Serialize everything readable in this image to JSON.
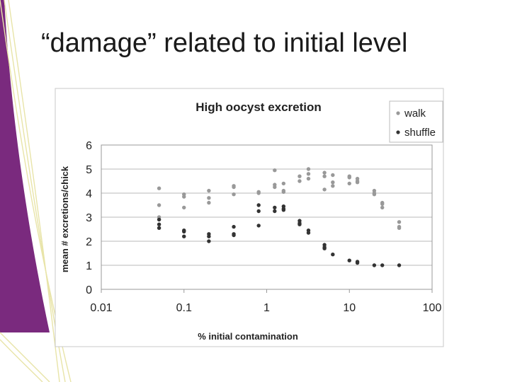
{
  "slide": {
    "title": "“damage” related to initial level",
    "accent_color": "#7a2a7e",
    "stripe_color": "#e8e4a8"
  },
  "chart_data": {
    "type": "scatter",
    "title": "High oocyst excretion",
    "xlabel": "% initial contamination",
    "ylabel": "mean # excretions/chick",
    "x_scale": "log",
    "xlim": [
      0.01,
      100
    ],
    "ylim": [
      0,
      6
    ],
    "x_ticks": [
      0.01,
      0.1,
      1,
      10,
      100
    ],
    "x_tick_labels": [
      "0.01",
      "0.1",
      "1",
      "10",
      "100"
    ],
    "y_ticks": [
      0,
      1,
      2,
      3,
      4,
      5,
      6
    ],
    "y_tick_labels": [
      "0",
      "1",
      "2",
      "3",
      "4",
      "5",
      "6"
    ],
    "grid": "horizontal",
    "legend_position": "top-right",
    "series": [
      {
        "name": "walk",
        "color": "#999999",
        "points": [
          [
            0.05,
            4.2
          ],
          [
            0.05,
            3.5
          ],
          [
            0.05,
            3.0
          ],
          [
            0.05,
            2.9
          ],
          [
            0.1,
            3.95
          ],
          [
            0.1,
            3.85
          ],
          [
            0.1,
            3.4
          ],
          [
            0.2,
            4.1
          ],
          [
            0.2,
            3.8
          ],
          [
            0.2,
            3.6
          ],
          [
            0.4,
            4.3
          ],
          [
            0.4,
            4.25
          ],
          [
            0.4,
            3.95
          ],
          [
            0.8,
            4.05
          ],
          [
            0.8,
            4.0
          ],
          [
            1.25,
            4.95
          ],
          [
            1.25,
            4.35
          ],
          [
            1.25,
            4.25
          ],
          [
            1.6,
            4.4
          ],
          [
            1.6,
            4.1
          ],
          [
            1.6,
            4.05
          ],
          [
            2.5,
            4.7
          ],
          [
            2.5,
            4.5
          ],
          [
            3.2,
            5.0
          ],
          [
            3.2,
            4.8
          ],
          [
            3.2,
            4.6
          ],
          [
            5.0,
            4.85
          ],
          [
            5.0,
            4.7
          ],
          [
            5.0,
            4.15
          ],
          [
            6.3,
            4.75
          ],
          [
            6.3,
            4.45
          ],
          [
            6.3,
            4.3
          ],
          [
            10.0,
            4.7
          ],
          [
            10.0,
            4.65
          ],
          [
            10.0,
            4.4
          ],
          [
            12.5,
            4.6
          ],
          [
            12.5,
            4.5
          ],
          [
            12.5,
            4.45
          ],
          [
            20.0,
            4.1
          ],
          [
            20.0,
            4.0
          ],
          [
            20.0,
            3.95
          ],
          [
            25.0,
            3.6
          ],
          [
            25.0,
            3.55
          ],
          [
            25.0,
            3.4
          ],
          [
            40.0,
            2.8
          ],
          [
            40.0,
            2.6
          ],
          [
            40.0,
            2.55
          ]
        ]
      },
      {
        "name": "shuffle",
        "color": "#333333",
        "points": [
          [
            0.05,
            2.9
          ],
          [
            0.05,
            2.7
          ],
          [
            0.05,
            2.55
          ],
          [
            0.1,
            2.45
          ],
          [
            0.1,
            2.4
          ],
          [
            0.1,
            2.2
          ],
          [
            0.2,
            2.3
          ],
          [
            0.2,
            2.2
          ],
          [
            0.2,
            2.0
          ],
          [
            0.4,
            2.6
          ],
          [
            0.4,
            2.3
          ],
          [
            0.4,
            2.25
          ],
          [
            0.8,
            3.5
          ],
          [
            0.8,
            3.25
          ],
          [
            0.8,
            2.65
          ],
          [
            1.25,
            3.4
          ],
          [
            1.25,
            3.25
          ],
          [
            1.6,
            3.45
          ],
          [
            1.6,
            3.35
          ],
          [
            1.6,
            3.3
          ],
          [
            2.5,
            2.85
          ],
          [
            2.5,
            2.75
          ],
          [
            2.5,
            2.7
          ],
          [
            3.2,
            2.45
          ],
          [
            3.2,
            2.35
          ],
          [
            5.0,
            1.85
          ],
          [
            5.0,
            1.75
          ],
          [
            5.0,
            1.7
          ],
          [
            6.3,
            1.45
          ],
          [
            10.0,
            1.2
          ],
          [
            12.5,
            1.15
          ],
          [
            12.5,
            1.1
          ],
          [
            20.0,
            1.0
          ],
          [
            25.0,
            1.0
          ],
          [
            40.0,
            1.0
          ]
        ]
      }
    ]
  }
}
